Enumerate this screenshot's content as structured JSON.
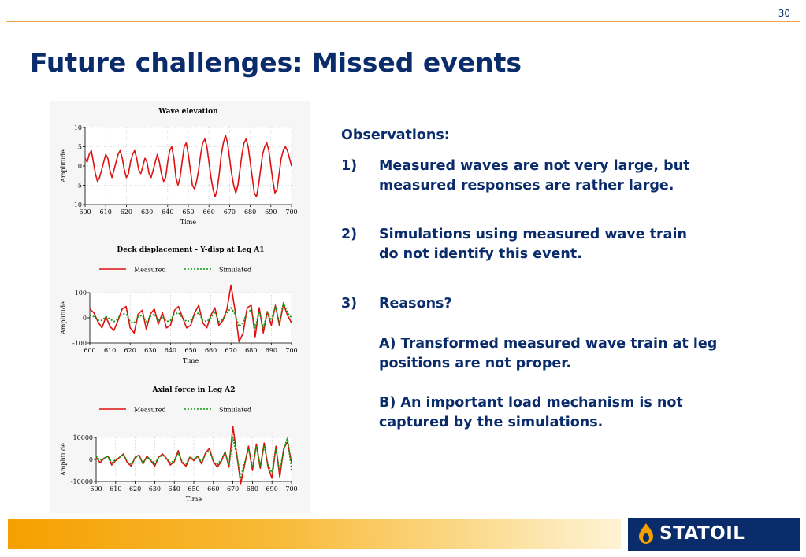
{
  "page_number": "30",
  "title": "Future challenges: Missed events",
  "observations": {
    "heading": "Observations:",
    "items": [
      {
        "num": "1)",
        "lines": [
          "Measured waves are not very large, but",
          "measured responses are rather large."
        ]
      },
      {
        "num": "2)",
        "lines": [
          "Simulations using measured wave train",
          "do not identify this event."
        ]
      },
      {
        "num": "3)",
        "lines": [
          "Reasons?",
          "",
          "A) Transformed measured wave train at leg",
          "positions are not proper.",
          "",
          "B) An important load mechanism is not",
          "captured by the simulations."
        ]
      }
    ]
  },
  "logo": {
    "text": "STATOIL",
    "colors": {
      "background": "#0a2c6b",
      "flame": "#f5a000"
    }
  },
  "colors": {
    "title": "#0a2c6b",
    "measured": "#dd1111",
    "simulated": "#119911"
  },
  "chart_data": [
    {
      "type": "line",
      "title": "Wave elevation",
      "xlabel": "Time",
      "ylabel": "Amplitude",
      "xlim": [
        600,
        700
      ],
      "ylim": [
        -10,
        10
      ],
      "xticks": [
        600,
        610,
        620,
        630,
        640,
        650,
        660,
        670,
        680,
        690,
        700
      ],
      "yticks": [
        10,
        5,
        0,
        -5,
        -10
      ],
      "grid": true,
      "legend": [],
      "series": [
        {
          "color": "#dd1111",
          "dashed": false,
          "x": [
            600,
            601,
            602,
            603,
            604,
            605,
            606,
            607,
            608,
            609,
            610,
            611,
            612,
            613,
            614,
            615,
            616,
            617,
            618,
            619,
            620,
            621,
            622,
            623,
            624,
            625,
            626,
            627,
            628,
            629,
            630,
            631,
            632,
            633,
            634,
            635,
            636,
            637,
            638,
            639,
            640,
            641,
            642,
            643,
            644,
            645,
            646,
            647,
            648,
            649,
            650,
            651,
            652,
            653,
            654,
            655,
            656,
            657,
            658,
            659,
            660,
            661,
            662,
            663,
            664,
            665,
            666,
            667,
            668,
            669,
            670,
            671,
            672,
            673,
            674,
            675,
            676,
            677,
            678,
            679,
            680,
            681,
            682,
            683,
            684,
            685,
            686,
            687,
            688,
            689,
            690,
            691,
            692,
            693,
            694,
            695,
            696,
            697,
            698,
            699,
            700
          ],
          "y": [
            2,
            1,
            3,
            4,
            1,
            -2,
            -4,
            -3,
            -1,
            1,
            3,
            2,
            -1,
            -3,
            -1,
            1,
            3,
            4,
            2,
            -1,
            -3,
            -2,
            1,
            3,
            4,
            2,
            -1,
            -2,
            0,
            2,
            1,
            -2,
            -3,
            -1,
            1,
            3,
            1,
            -2,
            -4,
            -3,
            1,
            4,
            5,
            2,
            -3,
            -5,
            -3,
            1,
            5,
            6,
            3,
            -1,
            -5,
            -6,
            -4,
            -1,
            3,
            6,
            7,
            5,
            1,
            -3,
            -6,
            -8,
            -6,
            -2,
            3,
            6,
            8,
            6,
            2,
            -2,
            -5,
            -7,
            -5,
            -1,
            3,
            6,
            7,
            5,
            1,
            -3,
            -7,
            -8,
            -5,
            -1,
            3,
            5,
            6,
            4,
            0,
            -4,
            -7,
            -6,
            -2,
            2,
            4,
            5,
            4,
            2,
            0
          ]
        }
      ]
    },
    {
      "type": "line",
      "title": "Deck displacement - Y-disp at Leg A1",
      "xlabel": "Time",
      "ylabel": "Amplitude",
      "xlim": [
        600,
        700
      ],
      "ylim": [
        -100,
        100
      ],
      "xticks": [
        600,
        610,
        620,
        630,
        640,
        650,
        660,
        670,
        680,
        690,
        700
      ],
      "yticks": [
        100,
        0,
        -100
      ],
      "grid": true,
      "legend": [
        "Measured",
        "Simulated"
      ],
      "series": [
        {
          "name": "Measured",
          "color": "#dd1111",
          "dashed": false,
          "x": [
            600,
            602,
            604,
            606,
            608,
            610,
            612,
            614,
            616,
            618,
            620,
            622,
            624,
            626,
            628,
            630,
            632,
            634,
            636,
            638,
            640,
            642,
            644,
            646,
            648,
            650,
            652,
            654,
            656,
            658,
            660,
            662,
            664,
            666,
            668,
            670,
            672,
            674,
            676,
            678,
            680,
            682,
            684,
            686,
            688,
            690,
            692,
            694,
            696,
            698,
            700
          ],
          "y": [
            35,
            20,
            -15,
            -40,
            5,
            -35,
            -50,
            -10,
            35,
            45,
            -40,
            -60,
            15,
            30,
            -45,
            15,
            35,
            -25,
            20,
            -40,
            -30,
            30,
            45,
            0,
            -40,
            -30,
            20,
            50,
            -20,
            -40,
            10,
            40,
            -30,
            -10,
            35,
            130,
            30,
            -95,
            -60,
            40,
            50,
            -75,
            40,
            -60,
            25,
            -30,
            50,
            -30,
            55,
            10,
            -20
          ]
        },
        {
          "name": "Simulated",
          "color": "#119911",
          "dashed": true,
          "x": [
            600,
            602,
            604,
            606,
            608,
            610,
            612,
            614,
            616,
            618,
            620,
            622,
            624,
            626,
            628,
            630,
            632,
            634,
            636,
            638,
            640,
            642,
            644,
            646,
            648,
            650,
            652,
            654,
            656,
            658,
            660,
            662,
            664,
            666,
            668,
            670,
            672,
            674,
            676,
            678,
            680,
            682,
            684,
            686,
            688,
            690,
            692,
            694,
            696,
            698,
            700
          ],
          "y": [
            10,
            5,
            -10,
            -10,
            5,
            -5,
            -15,
            0,
            15,
            15,
            -15,
            -20,
            5,
            10,
            -15,
            5,
            15,
            -10,
            5,
            -15,
            -10,
            15,
            20,
            0,
            -15,
            -10,
            10,
            20,
            -10,
            -15,
            0,
            25,
            -15,
            -5,
            20,
            40,
            15,
            -35,
            -20,
            25,
            30,
            -40,
            25,
            -40,
            20,
            -10,
            45,
            -20,
            60,
            20,
            0
          ]
        }
      ]
    },
    {
      "type": "line",
      "title": "Axial force in Leg A2",
      "xlabel": "Time",
      "ylabel": "Amplitude",
      "xlim": [
        600,
        700
      ],
      "ylim": [
        -10000,
        10000
      ],
      "xticks": [
        600,
        610,
        620,
        630,
        640,
        650,
        660,
        670,
        680,
        690,
        700
      ],
      "yticks": [
        10000,
        0,
        -10000
      ],
      "grid": true,
      "legend": [
        "Measured",
        "Simulated"
      ],
      "series": [
        {
          "name": "Measured",
          "color": "#dd1111",
          "dashed": false,
          "x": [
            600,
            602,
            604,
            606,
            608,
            610,
            612,
            614,
            616,
            618,
            620,
            622,
            624,
            626,
            628,
            630,
            632,
            634,
            636,
            638,
            640,
            642,
            644,
            646,
            648,
            650,
            652,
            654,
            656,
            658,
            660,
            662,
            664,
            666,
            668,
            670,
            672,
            674,
            676,
            678,
            680,
            682,
            684,
            686,
            688,
            690,
            692,
            694,
            696,
            698,
            700
          ],
          "y": [
            1000,
            -1500,
            500,
            1500,
            -2500,
            -500,
            1000,
            2500,
            -1500,
            -3000,
            1000,
            2000,
            -2000,
            1500,
            -500,
            -3000,
            1000,
            2500,
            500,
            -2500,
            -1000,
            4000,
            -1500,
            -3000,
            1000,
            -500,
            1500,
            -2000,
            3000,
            5000,
            -1000,
            -3500,
            -1000,
            3500,
            -3500,
            15000,
            2000,
            -11000,
            -2500,
            6000,
            -5000,
            7000,
            -4000,
            7500,
            -3500,
            -8500,
            6000,
            -8000,
            5000,
            8000,
            -1500
          ]
        },
        {
          "name": "Simulated",
          "color": "#119911",
          "dashed": true,
          "x": [
            600,
            602,
            604,
            606,
            608,
            610,
            612,
            614,
            616,
            618,
            620,
            622,
            624,
            626,
            628,
            630,
            632,
            634,
            636,
            638,
            640,
            642,
            644,
            646,
            648,
            650,
            652,
            654,
            656,
            658,
            660,
            662,
            664,
            666,
            668,
            670,
            672,
            674,
            676,
            678,
            680,
            682,
            684,
            686,
            688,
            690,
            692,
            694,
            696,
            698,
            700
          ],
          "y": [
            1500,
            -500,
            500,
            1500,
            -1500,
            0,
            1000,
            2000,
            -1000,
            -2000,
            1000,
            1500,
            -1500,
            1000,
            0,
            -2000,
            1000,
            2000,
            500,
            -1500,
            -500,
            3000,
            -1000,
            -2000,
            1000,
            0,
            1500,
            -1500,
            2500,
            4000,
            -500,
            -2500,
            0,
            3000,
            -2500,
            10000,
            1500,
            -8000,
            -1500,
            5000,
            -3500,
            6000,
            -3000,
            6500,
            -2500,
            -6000,
            5000,
            -6000,
            4500,
            10000,
            -5000
          ]
        }
      ]
    }
  ]
}
